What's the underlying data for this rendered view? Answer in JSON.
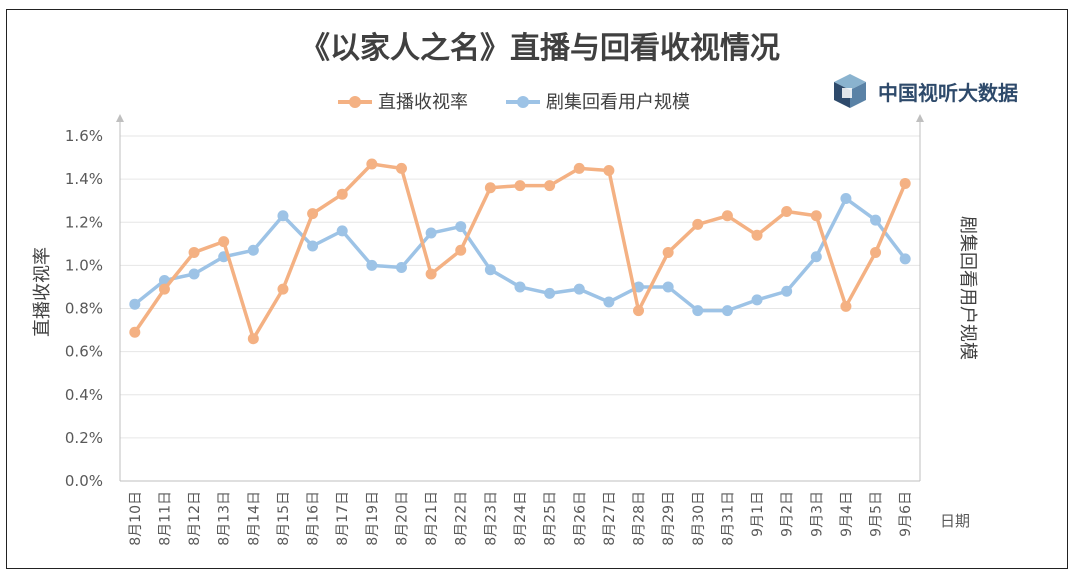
{
  "colors": {
    "series1": "#f4b183",
    "series2": "#9dc3e6",
    "grid": "#e6e6e6",
    "axis": "#bfbfbf",
    "brand": "#2e4a6b",
    "logo_light": "#8ab3cf"
  },
  "brand": {
    "name": "中国视听大数据",
    "icon": "cube-logo-icon"
  },
  "chart_data": {
    "type": "line",
    "title": "《以家人之名》直播与回看收视情况",
    "xlabel": "日期",
    "ylabel": "直播收视率",
    "y2label": "剧集回看用户规模",
    "ylim": [
      0,
      0.016
    ],
    "yticks": [
      "0.0%",
      "0.2%",
      "0.4%",
      "0.6%",
      "0.8%",
      "1.0%",
      "1.2%",
      "1.4%",
      "1.6%"
    ],
    "legend_position": "top-center",
    "grid": true,
    "categories": [
      "8月10日",
      "8月11日",
      "8月12日",
      "8月13日",
      "8月14日",
      "8月15日",
      "8月16日",
      "8月17日",
      "8月19日",
      "8月20日",
      "8月21日",
      "8月22日",
      "8月23日",
      "8月24日",
      "8月25日",
      "8月26日",
      "8月27日",
      "8月28日",
      "8月29日",
      "8月30日",
      "8月31日",
      "9月1日",
      "9月2日",
      "9月3日",
      "9月4日",
      "9月5日",
      "9月6日"
    ],
    "series": [
      {
        "name": "直播收视率",
        "axis": "left",
        "values": [
          0.0069,
          0.0089,
          0.0106,
          0.0111,
          0.0066,
          0.0089,
          0.0124,
          0.0133,
          0.0147,
          0.0145,
          0.0096,
          0.0107,
          0.0136,
          0.0137,
          0.0137,
          0.0145,
          0.0144,
          0.0079,
          0.0106,
          0.0119,
          0.0123,
          0.0114,
          0.0125,
          0.0123,
          0.0081,
          0.0106,
          0.0138
        ]
      },
      {
        "name": "剧集回看用户规模",
        "axis": "right",
        "values": [
          0.0082,
          0.0093,
          0.0096,
          0.0104,
          0.0107,
          0.0123,
          0.0109,
          0.0116,
          0.01,
          0.0099,
          0.0115,
          0.0118,
          0.0098,
          0.009,
          0.0087,
          0.0089,
          0.0083,
          0.009,
          0.009,
          0.0079,
          0.0079,
          0.0084,
          0.0088,
          0.0104,
          0.0131,
          0.0121,
          0.0103
        ]
      }
    ]
  }
}
